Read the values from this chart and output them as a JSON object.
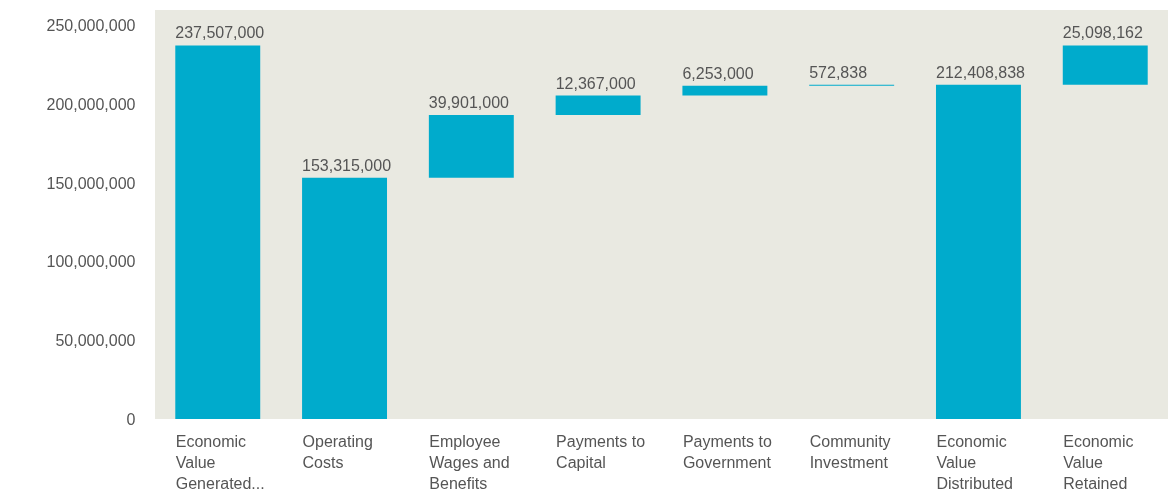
{
  "chart_data": {
    "type": "bar",
    "categories": [
      "Economic Value Generated...",
      "Operating Costs",
      "Employee Wages and Benefits",
      "Payments to Capital",
      "Payments to Government",
      "Community Investment",
      "Economic Value Distributed",
      "Economic Value Retained"
    ],
    "values": [
      237507000,
      153315000,
      39901000,
      12367000,
      6253000,
      572838,
      212408838,
      25098162
    ],
    "value_labels": [
      "237,507,000",
      "153,315,000",
      "39,901,000",
      "12,367,000",
      "6,253,000",
      "572,838",
      "212,408,838",
      "25,098,162"
    ],
    "base": [
      0,
      0,
      153315000,
      193216000,
      205583000,
      211836000,
      0,
      212408838
    ],
    "color": "#00abcc",
    "ylim": [
      0,
      260000000
    ],
    "yticks": [
      0,
      {
        "value": 50000000,
        "label": "50,000,000"
      },
      {
        "value": 100000000,
        "label": "100,000,000"
      },
      {
        "value": 150000000,
        "label": "150,000,000"
      },
      {
        "value": 200000000,
        "label": "200,000,000"
      },
      {
        "value": 250000000,
        "label": "250,000,000"
      }
    ]
  }
}
